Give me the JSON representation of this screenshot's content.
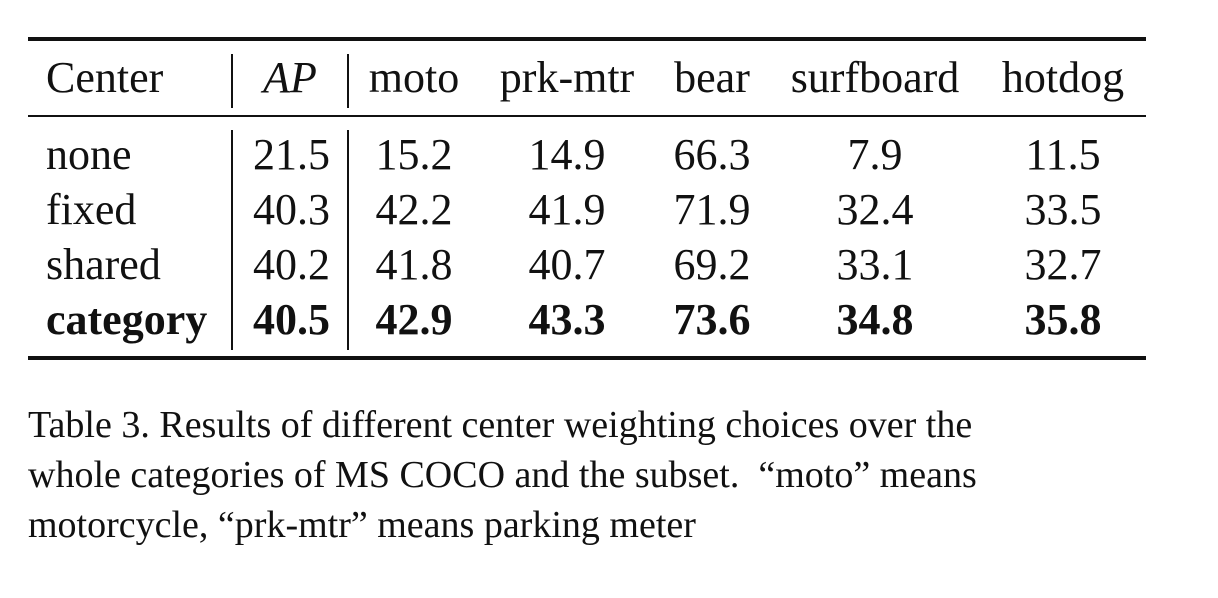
{
  "table": {
    "header": [
      "Center",
      "AP",
      "moto",
      "prk-mtr",
      "bear",
      "surfboard",
      "hotdog"
    ],
    "rows": [
      {
        "center": "none",
        "values": [
          "21.5",
          "15.2",
          "14.9",
          "66.3",
          "7.9",
          "11.5"
        ]
      },
      {
        "center": "fixed",
        "values": [
          "40.3",
          "42.2",
          "41.9",
          "71.9",
          "32.4",
          "33.5"
        ]
      },
      {
        "center": "shared",
        "values": [
          "40.2",
          "41.8",
          "40.7",
          "69.2",
          "33.1",
          "32.7"
        ]
      },
      {
        "center": "category",
        "values": [
          "40.5",
          "42.9",
          "43.3",
          "73.6",
          "34.8",
          "35.8"
        ],
        "bold": true
      }
    ]
  },
  "caption": {
    "line1": "Table 3. Results of different center weighting choices over the",
    "line2": "whole categories of MS COCO and the subset.  “moto” means",
    "line3": "motorcycle, “prk-mtr” means parking meter"
  }
}
